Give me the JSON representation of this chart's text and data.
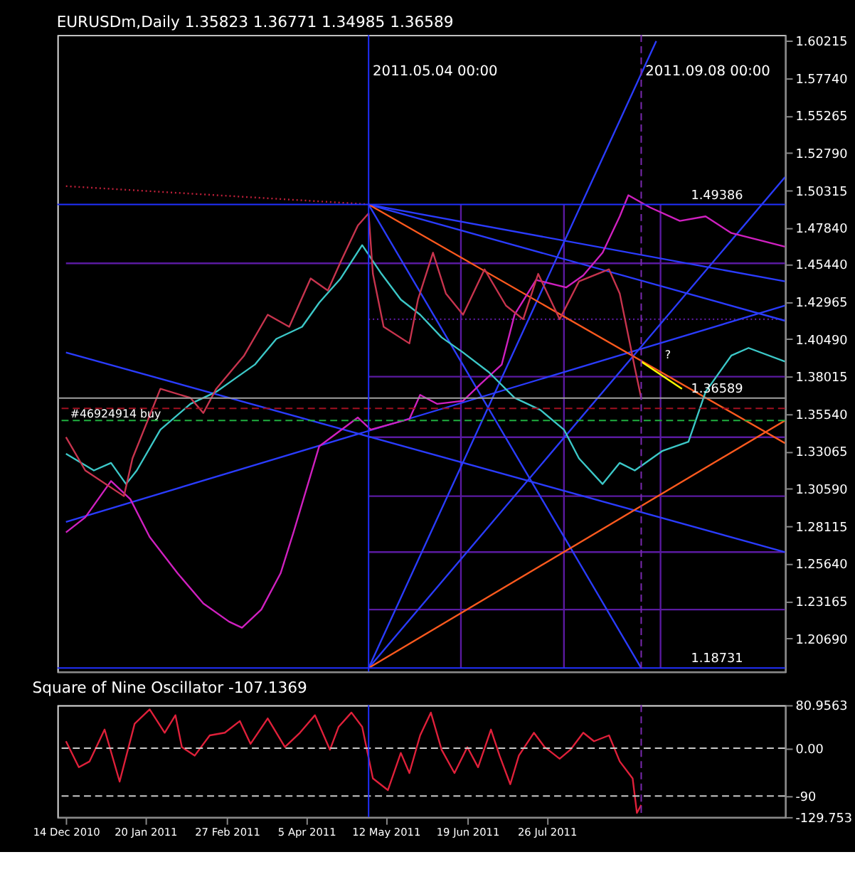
{
  "chart_data": [
    {
      "type": "line",
      "title": "EURUSDm,Daily 1.35823 1.36771 1.34985 1.36589",
      "xlim": [
        "2010-12-10",
        "2011-11-14"
      ],
      "ylim": [
        1.185,
        1.606
      ],
      "tick_labels": "y",
      "grid": false,
      "yticks": [
        1.60215,
        {
          "value": 1.5774,
          "label": "1.57740"
        },
        1.55265,
        {
          "value": 1.5279,
          "label": "1.52790"
        },
        1.50315,
        {
          "value": 1.4784,
          "label": "1.47840"
        },
        {
          "value": 1.4544,
          "label": "1.45440"
        },
        1.42965,
        {
          "value": 1.4049,
          "label": "1.40490"
        },
        1.38015,
        {
          "value": 1.3554,
          "label": "1.35540"
        },
        1.33065,
        {
          "value": 1.3059,
          "label": "1.30590"
        },
        1.28115,
        {
          "value": 1.2564,
          "label": "1.25640"
        },
        1.23165,
        {
          "value": 1.2069,
          "label": "1.20690"
        }
      ],
      "series": [
        {
          "color": "#5a1aa0",
          "x": [
            "2010-12-14",
            "2011-11-14"
          ],
          "values": [
            1.455,
            1.455
          ]
        },
        {
          "color": "#5a1aa0",
          "x": [
            "2011-05-04",
            "2011-11-14"
          ],
          "values": [
            1.418,
            1.418
          ],
          "line_style": "dotted"
        },
        {
          "color": "#5a1aa0",
          "x": [
            "2011-05-04",
            "2011-11-14"
          ],
          "values": [
            1.38,
            1.38
          ]
        },
        {
          "color": "#5a1aa0",
          "x": [
            "2011-05-04",
            "2011-11-14"
          ],
          "values": [
            1.34,
            1.34
          ]
        },
        {
          "color": "#5a1aa0",
          "x": [
            "2011-05-04",
            "2011-11-14"
          ],
          "values": [
            1.301,
            1.301
          ]
        },
        {
          "color": "#5a1aa0",
          "x": [
            "2011-05-04",
            "2011-11-14"
          ],
          "values": [
            1.264,
            1.264
          ]
        },
        {
          "color": "#5a1aa0",
          "x": [
            "2011-05-04",
            "2011-11-14"
          ],
          "values": [
            1.226,
            1.226
          ]
        },
        {
          "color": "#5a1aa0",
          "x": [
            "2011-06-16",
            "2011-06-16"
          ],
          "values": [
            1.18731,
            1.49386
          ]
        },
        {
          "color": "#5a1aa0",
          "x": [
            "2011-08-03",
            "2011-08-03"
          ],
          "values": [
            1.18731,
            1.49386
          ]
        },
        {
          "color": "#5a1aa0",
          "x": [
            "2011-09-17",
            "2011-09-17"
          ],
          "values": [
            1.18731,
            1.49386
          ]
        },
        {
          "color": "#c0203a",
          "x": [
            "2010-12-14",
            "2011-05-04"
          ],
          "values": [
            1.506,
            1.494
          ],
          "line_style": "dotted"
        },
        {
          "color": "#2a3cff",
          "x": [
            "2011-05-04",
            "2011-11-14"
          ],
          "values": [
            1.49386,
            1.443
          ]
        },
        {
          "color": "#2a3cff",
          "x": [
            "2011-05-04",
            "2011-11-14"
          ],
          "values": [
            1.49386,
            1.417
          ]
        },
        {
          "color": "#2a3cff",
          "x": [
            "2011-05-04",
            "2011-09-08"
          ],
          "values": [
            1.49386,
            1.18731
          ]
        },
        {
          "color": "#2a3cff",
          "x": [
            "2011-05-04",
            "2011-09-15"
          ],
          "values": [
            1.18731,
            1.602
          ]
        },
        {
          "color": "#2a3cff",
          "x": [
            "2011-05-04",
            "2011-11-14"
          ],
          "values": [
            1.18731,
            1.512
          ]
        },
        {
          "color": "#2a3cff",
          "x": [
            "2010-12-14",
            "2011-11-14"
          ],
          "values": [
            1.284,
            1.427
          ]
        },
        {
          "color": "#2a3cff",
          "x": [
            "2010-12-14",
            "2011-11-14"
          ],
          "values": [
            1.396,
            1.264
          ]
        },
        {
          "color": "#ff5a1e",
          "x": [
            "2011-05-04",
            "2011-11-14"
          ],
          "values": [
            1.49386,
            1.336
          ]
        },
        {
          "color": "#ff5a1e",
          "x": [
            "2011-05-04",
            "2011-11-14"
          ],
          "values": [
            1.18731,
            1.351
          ]
        },
        {
          "color": "#d020c0",
          "x": [
            "2010-12-14",
            "2010-12-23",
            "2011-01-04",
            "2011-01-13",
            "2011-01-22",
            "2011-02-04",
            "2011-02-16",
            "2011-02-28",
            "2011-03-06",
            "2011-03-15",
            "2011-03-24",
            "2011-03-30",
            "2011-04-11",
            "2011-04-29",
            "2011-05-05",
            "2011-05-23",
            "2011-05-28",
            "2011-06-05",
            "2011-06-17",
            "2011-06-25",
            "2011-07-05",
            "2011-07-11",
            "2011-07-21",
            "2011-08-04",
            "2011-08-12",
            "2011-08-21",
            "2011-08-29",
            "2011-09-02",
            "2011-09-12",
            "2011-09-26",
            "2011-10-08",
            "2011-10-20",
            "2011-11-03",
            "2011-11-14"
          ],
          "values": [
            1.277,
            1.287,
            1.311,
            1.299,
            1.274,
            1.25,
            1.23,
            1.218,
            1.214,
            1.226,
            1.25,
            1.277,
            1.334,
            1.353,
            1.345,
            1.352,
            1.368,
            1.362,
            1.364,
            1.375,
            1.388,
            1.421,
            1.444,
            1.439,
            1.447,
            1.462,
            1.486,
            1.5,
            1.492,
            1.483,
            1.486,
            1.475,
            1.47,
            1.466
          ]
        },
        {
          "color": "#3cc8c8",
          "x": [
            "2010-12-14",
            "2010-12-27",
            "2011-01-04",
            "2011-01-11",
            "2011-01-16",
            "2011-01-27",
            "2011-02-10",
            "2011-02-22",
            "2011-03-04",
            "2011-03-12",
            "2011-03-22",
            "2011-04-03",
            "2011-04-11",
            "2011-04-21",
            "2011-05-01",
            "2011-05-10",
            "2011-05-19",
            "2011-05-28",
            "2011-06-07",
            "2011-06-17",
            "2011-06-29",
            "2011-07-11",
            "2011-07-23",
            "2011-08-03",
            "2011-08-10",
            "2011-08-21",
            "2011-08-29",
            "2011-09-05",
            "2011-09-18",
            "2011-09-30",
            "2011-10-08",
            "2011-10-20",
            "2011-10-28",
            "2011-11-14"
          ],
          "values": [
            1.329,
            1.318,
            1.323,
            1.309,
            1.318,
            1.345,
            1.362,
            1.37,
            1.38,
            1.388,
            1.405,
            1.413,
            1.429,
            1.445,
            1.467,
            1.448,
            1.431,
            1.421,
            1.406,
            1.396,
            1.383,
            1.366,
            1.358,
            1.345,
            1.326,
            1.309,
            1.323,
            1.318,
            1.331,
            1.337,
            1.37,
            1.394,
            1.399,
            1.39
          ]
        },
        {
          "color": "#c8344e",
          "x": [
            "2010-12-14",
            "2010-12-23",
            "2011-01-10",
            "2011-01-14",
            "2011-01-27",
            "2011-02-10",
            "2011-02-16",
            "2011-02-22",
            "2011-03-07",
            "2011-03-18",
            "2011-03-28",
            "2011-04-07",
            "2011-04-15",
            "2011-04-21",
            "2011-04-29",
            "2011-05-04",
            "2011-05-06",
            "2011-05-11",
            "2011-05-23",
            "2011-05-27",
            "2011-06-03",
            "2011-06-09",
            "2011-06-17",
            "2011-06-27",
            "2011-07-07",
            "2011-07-15",
            "2011-07-22",
            "2011-08-01",
            "2011-08-10",
            "2011-08-24",
            "2011-08-29",
            "2011-09-02",
            "2011-09-05",
            "2011-09-08"
          ],
          "values": [
            1.34,
            1.318,
            1.301,
            1.326,
            1.372,
            1.366,
            1.356,
            1.372,
            1.394,
            1.421,
            1.413,
            1.445,
            1.437,
            1.456,
            1.48,
            1.488,
            1.448,
            1.413,
            1.402,
            1.431,
            1.462,
            1.435,
            1.421,
            1.451,
            1.427,
            1.418,
            1.448,
            1.418,
            1.443,
            1.451,
            1.435,
            1.407,
            1.386,
            1.36589
          ]
        },
        {
          "color": "#ffff00",
          "x": [
            "2011-09-08",
            "2011-09-27"
          ],
          "values": [
            1.39,
            1.372
          ]
        }
      ],
      "ref_lines": [
        {
          "axis": "y",
          "value": 1.49386,
          "label": "1.49386",
          "color": "#2030ff"
        },
        {
          "axis": "y",
          "value": 1.18731,
          "label": "1.18731",
          "color": "#2030ff"
        },
        {
          "axis": "y",
          "value": 1.36589,
          "label": "1.36589",
          "color": "#a0a0a0"
        },
        {
          "axis": "y",
          "value": 1.359,
          "color": "#a01020",
          "line_style": "dashed"
        },
        {
          "axis": "y",
          "value": 1.351,
          "color": "#20b040",
          "line_style": "dashed"
        },
        {
          "axis": "x",
          "value": "2011-05-04",
          "label": "2011.05.04 00:00",
          "color": "#2030ff"
        },
        {
          "axis": "x",
          "value": "2011-09-08",
          "label": "2011.09.08 00:00",
          "color": "#7a2ab0",
          "line_style": "dashed"
        }
      ],
      "annotations": [
        {
          "text": "#46924914 buy",
          "x": "2010-12-16",
          "y": 1.355
        },
        {
          "text": "?",
          "x": "2011-09-19",
          "y": 1.394
        }
      ]
    },
    {
      "type": "line",
      "title": "Square of Nine Oscillator -107.1369",
      "xlim": [
        "2010-12-10",
        "2011-11-14"
      ],
      "ylim": [
        -129.753,
        80.9563
      ],
      "grid": false,
      "xticks": [
        {
          "value": "2010-12-14",
          "label": "14 Dec 2010"
        },
        {
          "value": "2011-01-20",
          "label": "20 Jan 2011"
        },
        {
          "value": "2011-02-27",
          "label": "27 Feb 2011"
        },
        {
          "value": "2011-04-05",
          "label": "5 Apr 2011"
        },
        {
          "value": "2011-05-12",
          "label": "12 May 2011"
        },
        {
          "value": "2011-06-19",
          "label": "19 Jun 2011"
        },
        {
          "value": "2011-07-26",
          "label": "26 Jul 2011"
        }
      ],
      "yticks": [
        80.9563,
        {
          "value": 0,
          "label": "0.00"
        },
        -90,
        -129.753
      ],
      "series": [
        {
          "color": "#e0203a",
          "x": [
            "2010-12-14",
            "2010-12-20",
            "2010-12-25",
            "2011-01-01",
            "2011-01-08",
            "2011-01-15",
            "2011-01-22",
            "2011-01-29",
            "2011-02-03",
            "2011-02-06",
            "2011-02-12",
            "2011-02-19",
            "2011-02-26",
            "2011-03-05",
            "2011-03-10",
            "2011-03-18",
            "2011-03-26",
            "2011-04-02",
            "2011-04-09",
            "2011-04-16",
            "2011-04-20",
            "2011-04-26",
            "2011-05-01",
            "2011-05-06",
            "2011-05-13",
            "2011-05-19",
            "2011-05-23",
            "2011-05-28",
            "2011-06-02",
            "2011-06-07",
            "2011-06-13",
            "2011-06-19",
            "2011-06-24",
            "2011-06-30",
            "2011-07-04",
            "2011-07-09",
            "2011-07-13",
            "2011-07-20",
            "2011-07-25",
            "2011-08-01",
            "2011-08-06",
            "2011-08-12",
            "2011-08-17",
            "2011-08-24",
            "2011-08-29",
            "2011-09-04",
            "2011-09-06",
            "2011-09-08"
          ],
          "values": [
            13,
            -36,
            -25,
            35,
            -63,
            46,
            73,
            29,
            62,
            2,
            -14,
            24,
            29,
            51,
            8,
            56,
            2,
            29,
            62,
            -3,
            40,
            67,
            40,
            -57,
            -79,
            -9,
            -47,
            24,
            67,
            -3,
            -47,
            2,
            -36,
            35,
            -14,
            -68,
            -14,
            29,
            2,
            -20,
            -3,
            29,
            13,
            24,
            -25,
            -57,
            -122,
            -107
          ]
        }
      ],
      "ref_lines": [
        {
          "axis": "y",
          "value": 0,
          "color": "#c8c8c8",
          "line_style": "dashed"
        },
        {
          "axis": "y",
          "value": -90,
          "color": "#c8c8c8",
          "line_style": "dashed"
        },
        {
          "axis": "x",
          "value": "2011-05-04",
          "color": "#2030ff"
        },
        {
          "axis": "x",
          "value": "2011-09-08",
          "color": "#7a2ab0",
          "line_style": "dashed"
        }
      ]
    }
  ]
}
